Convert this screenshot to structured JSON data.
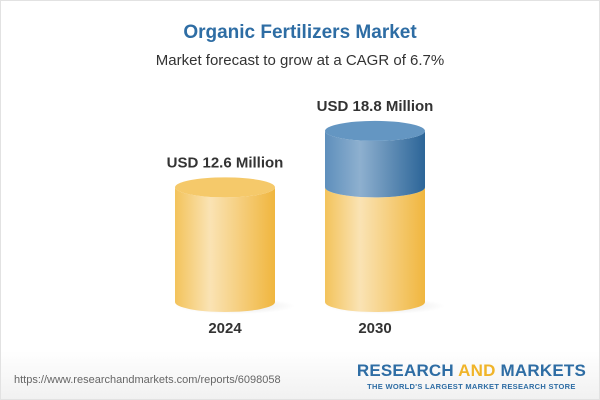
{
  "chart_data": {
    "type": "bar",
    "style": "3d-cylinder",
    "title": "Organic Fertilizers Market",
    "subtitle": "Market forecast to grow at a CAGR of 6.7%",
    "categories": [
      "2024",
      "2030"
    ],
    "values": [
      12.6,
      18.8
    ],
    "data_labels": [
      "USD 12.6 Million",
      "USD 18.8 Million"
    ],
    "unit": "USD Million",
    "colors": {
      "base": "#f3c35b",
      "growth": "#3f78aa",
      "title": "#2e6da4"
    }
  },
  "footer": {
    "url": "https://www.researchandmarkets.com/reports/6098058",
    "logo_part1": "RESEARCH ",
    "logo_part2": "AND",
    "logo_part3": " MARKETS",
    "tagline": "THE WORLD'S LARGEST MARKET RESEARCH STORE"
  }
}
